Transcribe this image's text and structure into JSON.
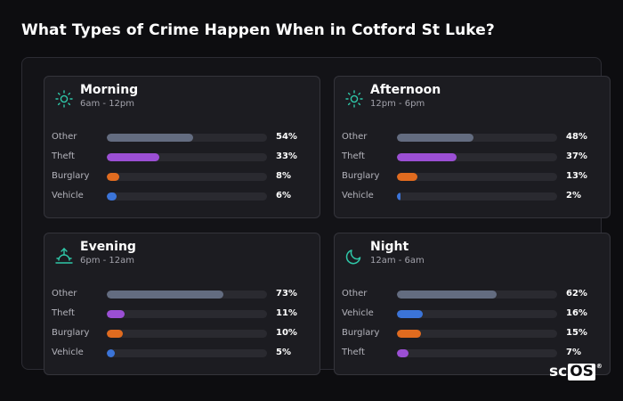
{
  "page": {
    "title": "What Types of Crime Happen When in Cotford St Luke?"
  },
  "colors": {
    "accent_icon": "#2fc7a8",
    "other": "#636c80",
    "theft": "#9b4fd4",
    "burglary": "#e06b1f",
    "vehicle": "#3b74d8"
  },
  "cards": [
    {
      "icon": "sun-icon",
      "title": "Morning",
      "subtitle": "6am - 12pm",
      "rows": [
        {
          "label": "Other",
          "percent": "54%",
          "value": 54,
          "category": "other"
        },
        {
          "label": "Theft",
          "percent": "33%",
          "value": 33,
          "category": "theft"
        },
        {
          "label": "Burglary",
          "percent": "8%",
          "value": 8,
          "category": "burglary"
        },
        {
          "label": "Vehicle",
          "percent": "6%",
          "value": 6,
          "category": "vehicle"
        }
      ]
    },
    {
      "icon": "sun-icon",
      "title": "Afternoon",
      "subtitle": "12pm - 6pm",
      "rows": [
        {
          "label": "Other",
          "percent": "48%",
          "value": 48,
          "category": "other"
        },
        {
          "label": "Theft",
          "percent": "37%",
          "value": 37,
          "category": "theft"
        },
        {
          "label": "Burglary",
          "percent": "13%",
          "value": 13,
          "category": "burglary"
        },
        {
          "label": "Vehicle",
          "percent": "2%",
          "value": 2,
          "category": "vehicle"
        }
      ]
    },
    {
      "icon": "sunset-icon",
      "title": "Evening",
      "subtitle": "6pm - 12am",
      "rows": [
        {
          "label": "Other",
          "percent": "73%",
          "value": 73,
          "category": "other"
        },
        {
          "label": "Theft",
          "percent": "11%",
          "value": 11,
          "category": "theft"
        },
        {
          "label": "Burglary",
          "percent": "10%",
          "value": 10,
          "category": "burglary"
        },
        {
          "label": "Vehicle",
          "percent": "5%",
          "value": 5,
          "category": "vehicle"
        }
      ]
    },
    {
      "icon": "moon-icon",
      "title": "Night",
      "subtitle": "12am - 6am",
      "rows": [
        {
          "label": "Other",
          "percent": "62%",
          "value": 62,
          "category": "other"
        },
        {
          "label": "Vehicle",
          "percent": "16%",
          "value": 16,
          "category": "vehicle"
        },
        {
          "label": "Burglary",
          "percent": "15%",
          "value": 15,
          "category": "burglary"
        },
        {
          "label": "Theft",
          "percent": "7%",
          "value": 7,
          "category": "theft"
        }
      ]
    }
  ],
  "logo": {
    "prefix": "sc",
    "boxed": "OS",
    "mark": "®"
  }
}
